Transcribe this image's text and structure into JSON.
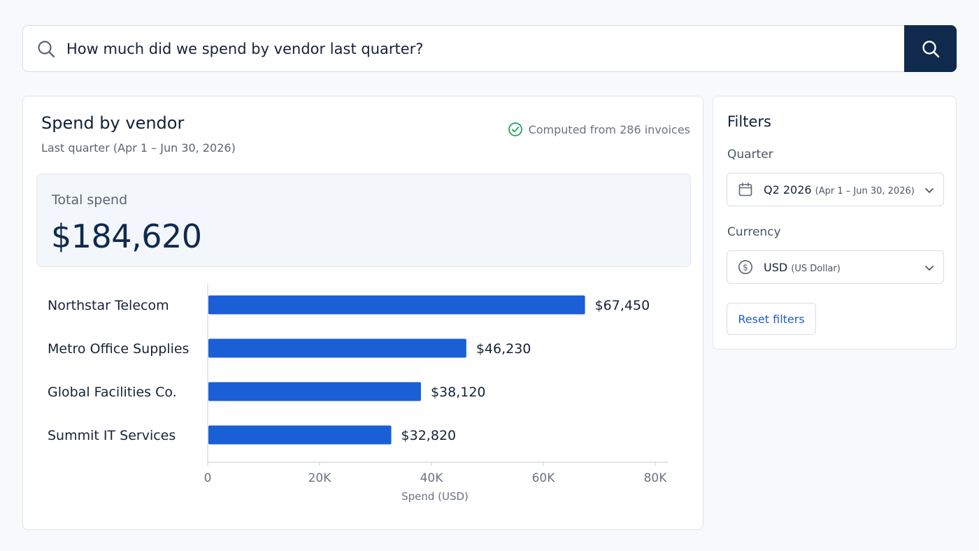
{
  "search": {
    "query": "How much did we spend by vendor last quarter?"
  },
  "report": {
    "title": "Spend by vendor",
    "subtitle": "Last quarter (Apr 1 – Jun 30, 2026)",
    "computed_note": "Computed from 286 invoices",
    "total_label": "Total spend",
    "total_value": "$184,620"
  },
  "filters": {
    "title": "Filters",
    "quarter_label": "Quarter",
    "quarter_value": "Q2 2026",
    "quarter_detail": "(Apr 1 – Jun 30, 2026)",
    "currency_label": "Currency",
    "currency_value": "USD",
    "currency_detail": "(US Dollar)",
    "reset_label": "Reset filters"
  },
  "colors": {
    "bar": "#1a5fd6",
    "button_dark": "#0f2a4d",
    "success": "#22a45d"
  },
  "chart_data": {
    "type": "bar",
    "orientation": "horizontal",
    "categories": [
      "Northstar Telecom",
      "Metro Office Supplies",
      "Global Facilities Co.",
      "Summit IT Services"
    ],
    "values": [
      67450,
      46230,
      38120,
      32820
    ],
    "value_labels": [
      "$67,450",
      "$46,230",
      "$38,120",
      "$32,820"
    ],
    "xlabel": "Spend (USD)",
    "xlim": [
      0,
      80000
    ],
    "ticks": [
      0,
      20000,
      40000,
      60000,
      80000
    ],
    "tick_labels": [
      "0",
      "20K",
      "40K",
      "60K",
      "80K"
    ],
    "grid": false
  }
}
